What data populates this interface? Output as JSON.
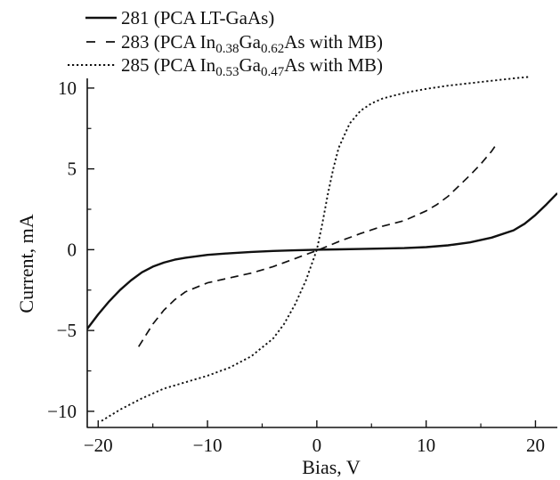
{
  "chart_data": {
    "type": "line",
    "xlabel": "Bias, V",
    "ylabel": "Current, mA",
    "xlim": [
      -21,
      22
    ],
    "ylim": [
      -11,
      10.6
    ],
    "xticks": [
      -20,
      -10,
      0,
      10,
      20
    ],
    "yticks": [
      -10,
      -5,
      0,
      5,
      10
    ],
    "xtick_labels": [
      "−20",
      "−10",
      "0",
      "10",
      "20"
    ],
    "ytick_labels": [
      "−10",
      "−5",
      "0",
      "5",
      "10"
    ],
    "grid": false,
    "legend_position": "top-left",
    "series": [
      {
        "name": "281 (PCA LT-GaAs)",
        "line_style": "solid",
        "color": "#111111",
        "x": [
          -21,
          -20,
          -19,
          -18,
          -17,
          -16,
          -15,
          -14,
          -13,
          -12,
          -10,
          -8,
          -6,
          -4,
          -2,
          0,
          2,
          4,
          6,
          8,
          10,
          12,
          14,
          16,
          18,
          19,
          20,
          21,
          22
        ],
        "y": [
          -4.9,
          -4.0,
          -3.2,
          -2.5,
          -1.9,
          -1.4,
          -1.05,
          -0.8,
          -0.62,
          -0.5,
          -0.32,
          -0.22,
          -0.14,
          -0.08,
          -0.04,
          0.0,
          0.02,
          0.04,
          0.07,
          0.1,
          0.16,
          0.27,
          0.45,
          0.75,
          1.2,
          1.6,
          2.15,
          2.8,
          3.5
        ]
      },
      {
        "name": "283 (PCA In0.38Ga0.62As with MB)",
        "legend_parts": [
          {
            "text": "283 (PCA In",
            "sub": false
          },
          {
            "text": "0.38",
            "sub": true
          },
          {
            "text": "Ga",
            "sub": false
          },
          {
            "text": "0.62",
            "sub": true
          },
          {
            "text": "As with MB)",
            "sub": false
          }
        ],
        "line_style": "dashed",
        "color": "#111111",
        "x": [
          -16.3,
          -15,
          -14,
          -13,
          -12,
          -10,
          -8,
          -6,
          -4,
          -2,
          -1,
          0,
          1,
          2,
          4,
          6,
          8,
          10,
          11,
          12,
          13,
          14,
          15,
          16,
          16.5
        ],
        "y": [
          -6.0,
          -4.6,
          -3.75,
          -3.1,
          -2.6,
          -2.05,
          -1.75,
          -1.45,
          -1.05,
          -0.55,
          -0.3,
          -0.05,
          0.22,
          0.5,
          1.0,
          1.45,
          1.8,
          2.4,
          2.8,
          3.3,
          3.95,
          4.6,
          5.3,
          6.1,
          6.6
        ]
      },
      {
        "name": "285 (PCA In0.53Ga0.47As with MB)",
        "legend_parts": [
          {
            "text": "285 (PCA In",
            "sub": false
          },
          {
            "text": "0.53",
            "sub": true
          },
          {
            "text": "Ga",
            "sub": false
          },
          {
            "text": "0.47",
            "sub": true
          },
          {
            "text": "As with MB)",
            "sub": false
          }
        ],
        "line_style": "dotted",
        "color": "#111111",
        "x": [
          -19.7,
          -18,
          -16,
          -14,
          -12,
          -10,
          -8,
          -6,
          -4,
          -3,
          -2,
          -1,
          0,
          0.5,
          1,
          1.5,
          2,
          3,
          4,
          5,
          6,
          8,
          10,
          12,
          14,
          16,
          18,
          19.5
        ],
        "y": [
          -10.6,
          -9.9,
          -9.2,
          -8.6,
          -8.2,
          -7.8,
          -7.3,
          -6.6,
          -5.5,
          -4.6,
          -3.4,
          -1.9,
          0.0,
          1.6,
          3.4,
          5.0,
          6.3,
          7.8,
          8.6,
          9.05,
          9.35,
          9.7,
          9.95,
          10.15,
          10.3,
          10.45,
          10.6,
          10.7
        ]
      }
    ]
  }
}
